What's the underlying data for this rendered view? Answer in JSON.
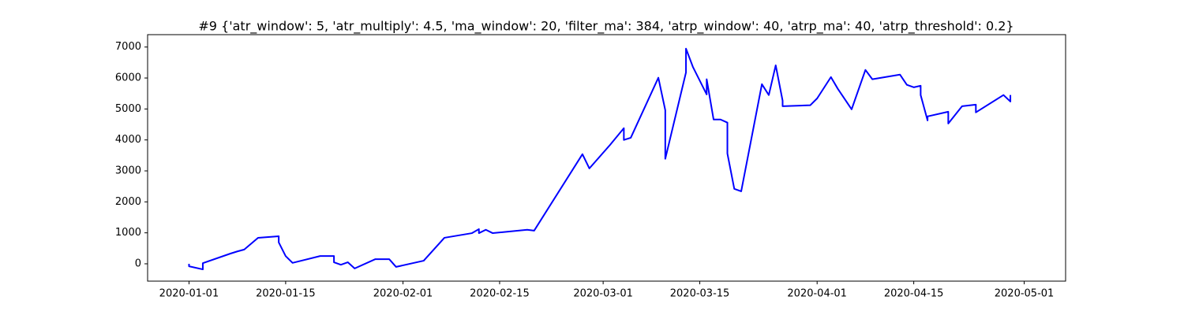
{
  "chart_data": {
    "type": "line",
    "title": "#9 {'atr_window': 5, 'atr_multiply': 4.5, 'ma_window': 20, 'filter_ma': 384, 'atrp_window': 40, 'atrp_ma': 40, 'atrp_threshold': 0.2}",
    "x": [
      "2020-01-01",
      "2020-01-01",
      "2020-01-03",
      "2020-01-03",
      "2020-01-07",
      "2020-01-08",
      "2020-01-09",
      "2020-01-11",
      "2020-01-14",
      "2020-01-14",
      "2020-01-15",
      "2020-01-16",
      "2020-01-20",
      "2020-01-22",
      "2020-01-22",
      "2020-01-23",
      "2020-01-24",
      "2020-01-25",
      "2020-01-28",
      "2020-01-30",
      "2020-01-31",
      "2020-02-04",
      "2020-02-07",
      "2020-02-11",
      "2020-02-12",
      "2020-02-12",
      "2020-02-13",
      "2020-02-14",
      "2020-02-19",
      "2020-02-20",
      "2020-02-27",
      "2020-02-28",
      "2020-03-02",
      "2020-03-04",
      "2020-03-04",
      "2020-03-05",
      "2020-03-09",
      "2020-03-10",
      "2020-03-10",
      "2020-03-13",
      "2020-03-13",
      "2020-03-14",
      "2020-03-16",
      "2020-03-16",
      "2020-03-17",
      "2020-03-18",
      "2020-03-19",
      "2020-03-19",
      "2020-03-20",
      "2020-03-21",
      "2020-03-24",
      "2020-03-25",
      "2020-03-26",
      "2020-03-27",
      "2020-03-27",
      "2020-03-31",
      "2020-04-01",
      "2020-04-03",
      "2020-04-04",
      "2020-04-06",
      "2020-04-08",
      "2020-04-09",
      "2020-04-13",
      "2020-04-14",
      "2020-04-15",
      "2020-04-16",
      "2020-04-16",
      "2020-04-17",
      "2020-04-17",
      "2020-04-20",
      "2020-04-20",
      "2020-04-22",
      "2020-04-24",
      "2020-04-24",
      "2020-04-28",
      "2020-04-29",
      "2020-04-29"
    ],
    "values": [
      0,
      -80,
      -180,
      20,
      330,
      400,
      460,
      840,
      890,
      690,
      250,
      30,
      250,
      250,
      50,
      -30,
      50,
      -150,
      150,
      150,
      -100,
      100,
      840,
      990,
      1120,
      990,
      1100,
      990,
      1100,
      1070,
      3540,
      3080,
      3840,
      4380,
      4000,
      4070,
      6010,
      4960,
      3390,
      6180,
      6950,
      6360,
      5470,
      5960,
      4660,
      4660,
      4560,
      3560,
      2420,
      2340,
      5800,
      5450,
      6410,
      5270,
      5090,
      5120,
      5340,
      6030,
      5650,
      4990,
      6260,
      5960,
      6110,
      5780,
      5700,
      5750,
      5450,
      4630,
      4760,
      4910,
      4530,
      5090,
      5140,
      4890,
      5450,
      5240,
      5450
    ],
    "color": "blue",
    "xlim": [
      "2019-12-26",
      "2020-05-07"
    ],
    "xticks": [
      "2020-01-01",
      "2020-01-15",
      "2020-02-01",
      "2020-02-15",
      "2020-03-01",
      "2020-03-15",
      "2020-04-01",
      "2020-04-15",
      "2020-05-01"
    ],
    "ylim": [
      -560,
      7400
    ],
    "yticks": [
      0,
      1000,
      2000,
      3000,
      4000,
      5000,
      6000,
      7000
    ]
  }
}
